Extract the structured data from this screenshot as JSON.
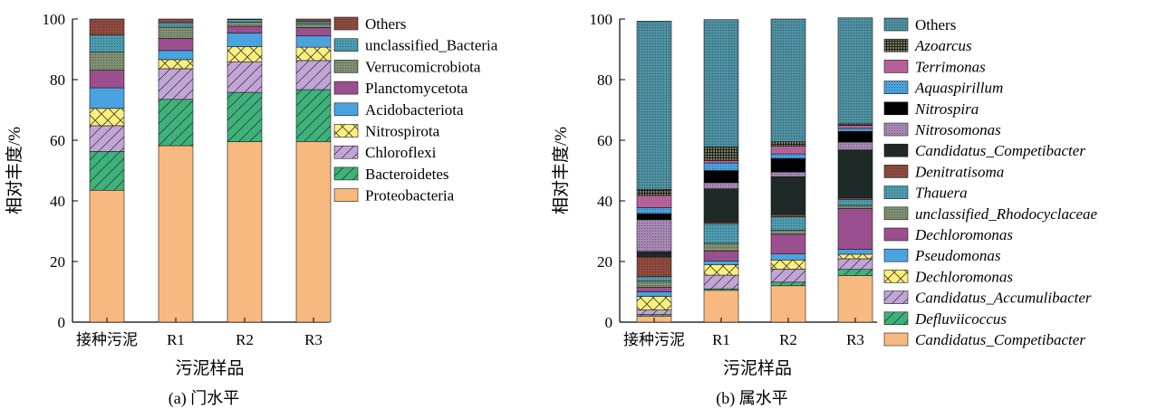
{
  "chart_data": [
    {
      "type": "bar",
      "stacked": true,
      "caption": "(a) 门水平",
      "ylabel": "相对丰度/%",
      "xlabel": "污泥样品",
      "ylim": [
        0,
        100
      ],
      "yticks": [
        "0",
        "20",
        "40",
        "60",
        "80",
        "100"
      ],
      "categories": [
        "接种污泥",
        "R1",
        "R2",
        "R3"
      ],
      "series": [
        {
          "name": "Proteobacteria",
          "color": "#F8B980",
          "pattern": "solid",
          "values": [
            43.5,
            58.2,
            59.5,
            59.6
          ]
        },
        {
          "name": "Bacteroidetes",
          "color": "#3DB27A",
          "pattern": "diag",
          "values": [
            12.8,
            15.3,
            16.3,
            17.1
          ]
        },
        {
          "name": "Chloroflexi",
          "color": "#C2A5D7",
          "pattern": "diag",
          "values": [
            8.5,
            10.1,
            10.1,
            9.6
          ]
        },
        {
          "name": "Nitrospirota",
          "color": "#FCF07C",
          "pattern": "cross",
          "values": [
            5.7,
            3.0,
            5.0,
            4.4
          ]
        },
        {
          "name": "Acidobacteriota",
          "color": "#4AA3DF",
          "pattern": "solid",
          "values": [
            6.8,
            3.0,
            4.5,
            3.7
          ]
        },
        {
          "name": "Planctomycetota",
          "color": "#9A4F8E",
          "pattern": "solid",
          "values": [
            5.8,
            4.0,
            2.2,
            2.8
          ]
        },
        {
          "name": "Verrucomicrobiota",
          "color": "#7F9070",
          "pattern": "dots",
          "values": [
            6.0,
            3.7,
            1.4,
            1.3
          ]
        },
        {
          "name": "unclassified_Bacteria",
          "color": "#4C9CB0",
          "pattern": "dots",
          "values": [
            5.6,
            1.5,
            0.8,
            0.7
          ]
        },
        {
          "name": "Others",
          "color": "#8E4A3D",
          "pattern": "dots",
          "values": [
            5.3,
            1.2,
            0.2,
            0.8
          ]
        }
      ]
    },
    {
      "type": "bar",
      "stacked": true,
      "caption": "(b) 属水平",
      "ylabel": "相对丰度/%",
      "xlabel": "污泥样品",
      "ylim": [
        0,
        100
      ],
      "yticks": [
        "0",
        "20",
        "40",
        "60",
        "80",
        "100"
      ],
      "categories": [
        "接种污泥",
        "R1",
        "R2",
        "R3"
      ],
      "series": [
        {
          "name": "Candidatus_Competibacter",
          "color": "#F8B980",
          "pattern": "solid",
          "values": [
            2.0,
            10.5,
            12.0,
            15.4
          ]
        },
        {
          "name": "Defluviicoccus",
          "color": "#3DB27A",
          "pattern": "diag",
          "values": [
            0.5,
            0.5,
            1.2,
            2.0
          ]
        },
        {
          "name": "Candidatus_Accumulibacter",
          "color": "#C2A5D7",
          "pattern": "diag",
          "values": [
            1.5,
            4.5,
            4.3,
            3.5
          ]
        },
        {
          "name": "Dechloromonas",
          "color": "#FCF07C",
          "pattern": "cross",
          "values": [
            4.5,
            3.5,
            3.0,
            1.5
          ]
        },
        {
          "name": "Pseudomonas",
          "color": "#4AA3DF",
          "pattern": "solid",
          "values": [
            1.5,
            1.2,
            2.0,
            1.6
          ]
        },
        {
          "name": "Dechloromonas",
          "color": "#9A4F8E",
          "pattern": "solid",
          "values": [
            1.5,
            3.3,
            6.5,
            13.5
          ]
        },
        {
          "name": "unclassified_Rhodocyclaceae",
          "color": "#7F9070",
          "pattern": "dots",
          "values": [
            2.0,
            2.5,
            1.3,
            1.0
          ]
        },
        {
          "name": "Thauera",
          "color": "#4C9CB0",
          "pattern": "dots",
          "values": [
            1.5,
            6.5,
            4.5,
            2.0
          ]
        },
        {
          "name": "Denitratisoma",
          "color": "#8E4A3D",
          "pattern": "dots",
          "values": [
            6.5,
            0.5,
            0.7,
            0.5
          ]
        },
        {
          "name": "Candidatus_Competibacter",
          "color": "#1E2A27",
          "pattern": "dots",
          "values": [
            1.8,
            11.0,
            12.5,
            15.8
          ]
        },
        {
          "name": "Nitrosomonas",
          "color": "#A788B5",
          "pattern": "dots",
          "values": [
            10.5,
            2.0,
            1.5,
            2.6
          ]
        },
        {
          "name": "Nitrospira",
          "color": "#000000",
          "pattern": "solid",
          "values": [
            2.0,
            4.0,
            4.5,
            3.5
          ]
        },
        {
          "name": "Aquaspirillum",
          "color": "#4AA3DF",
          "pattern": "dots",
          "values": [
            2.0,
            2.5,
            1.5,
            1.0
          ]
        },
        {
          "name": "Terrimonas",
          "color": "#B5609B",
          "pattern": "solid",
          "values": [
            4.0,
            0.8,
            2.5,
            1.0
          ]
        },
        {
          "name": "Azoarcus",
          "color": "#747A5A",
          "pattern": "grid",
          "values": [
            2.0,
            4.5,
            1.5,
            0.5
          ]
        },
        {
          "name": "Others",
          "color": "#4C8FA0",
          "pattern": "dots",
          "values": [
            55.5,
            42.0,
            40.5,
            35.0
          ]
        }
      ]
    }
  ]
}
